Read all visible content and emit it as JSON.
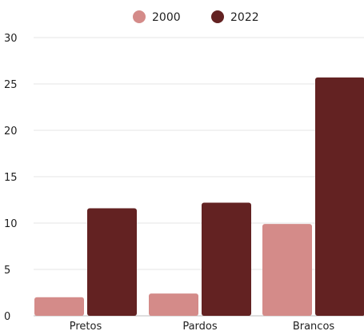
{
  "chart_data": {
    "type": "bar",
    "categories": [
      "Pretos",
      "Pardos",
      "Brancos"
    ],
    "series": [
      {
        "name": "2000",
        "values": [
          2.0,
          2.4,
          9.9
        ],
        "color": "#d48b89"
      },
      {
        "name": "2022",
        "values": [
          11.6,
          12.2,
          25.7
        ],
        "color": "#632222"
      }
    ],
    "ylim": [
      0,
      30
    ],
    "yticks": [
      0,
      5,
      10,
      15,
      20,
      25,
      30
    ],
    "grid": true,
    "legend": "top-center",
    "title": "",
    "xlabel": "",
    "ylabel": ""
  }
}
